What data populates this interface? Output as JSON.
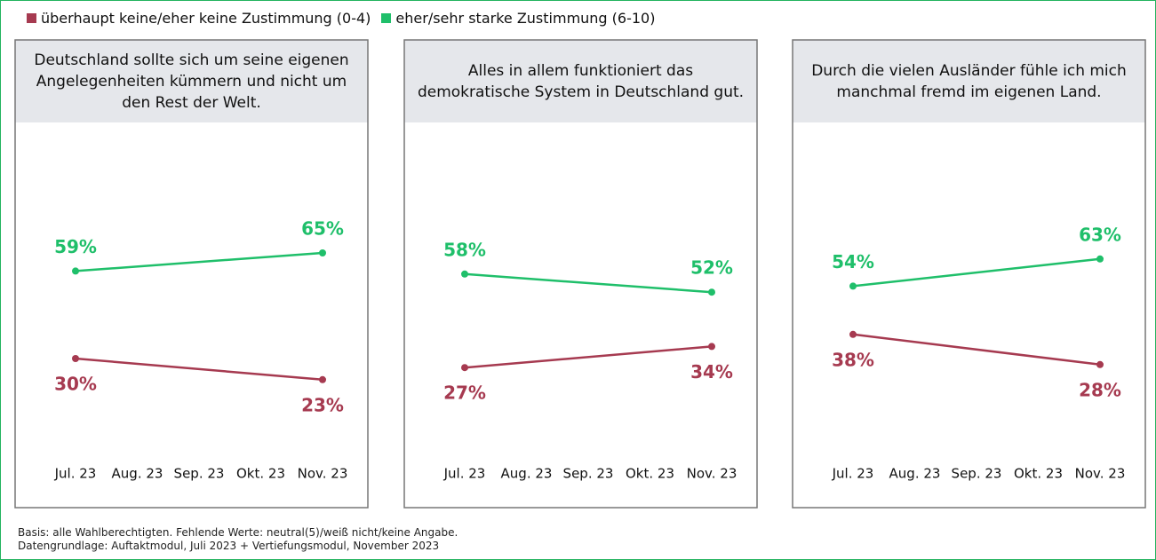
{
  "chart_data": [
    {
      "type": "line",
      "title": "Deutschland sollte sich um seine eigenen Angelegenheiten kümmern und nicht um den Rest der Welt.",
      "categories": [
        "Jul. 23",
        "Aug. 23",
        "Sep. 23",
        "Okt. 23",
        "Nov. 23"
      ],
      "ylim": [
        0,
        100
      ],
      "series": [
        {
          "name": "überhaupt keine/eher keine Zustimmung (0-4)",
          "color": "#a63a50",
          "values": [
            30,
            null,
            null,
            null,
            23
          ],
          "value_labels": [
            "30%",
            null,
            null,
            null,
            "23%"
          ]
        },
        {
          "name": "eher/sehr starke Zustimmung (6-10)",
          "color": "#1fbf6a",
          "values": [
            59,
            null,
            null,
            null,
            65
          ],
          "value_labels": [
            "59%",
            null,
            null,
            null,
            "65%"
          ]
        }
      ]
    },
    {
      "type": "line",
      "title": "Alles in allem funktioniert das demokratische System in Deutschland gut.",
      "categories": [
        "Jul. 23",
        "Aug. 23",
        "Sep. 23",
        "Okt. 23",
        "Nov. 23"
      ],
      "ylim": [
        0,
        100
      ],
      "series": [
        {
          "color": "#a63a50",
          "values": [
            27,
            null,
            null,
            null,
            34
          ],
          "value_labels": [
            "27%",
            null,
            null,
            null,
            "34%"
          ]
        },
        {
          "color": "#1fbf6a",
          "values": [
            58,
            null,
            null,
            null,
            52
          ],
          "value_labels": [
            "58%",
            null,
            null,
            null,
            "52%"
          ]
        }
      ]
    },
    {
      "type": "line",
      "title": "Durch die vielen Ausländer fühle ich mich manchmal fremd im eigenen Land.",
      "categories": [
        "Jul. 23",
        "Aug. 23",
        "Sep. 23",
        "Okt. 23",
        "Nov. 23"
      ],
      "ylim": [
        0,
        100
      ],
      "series": [
        {
          "color": "#a63a50",
          "values": [
            38,
            null,
            null,
            null,
            28
          ],
          "value_labels": [
            "38%",
            null,
            null,
            null,
            "28%"
          ]
        },
        {
          "color": "#1fbf6a",
          "values": [
            54,
            null,
            null,
            null,
            63
          ],
          "value_labels": [
            "54%",
            null,
            null,
            null,
            "63%"
          ]
        }
      ]
    }
  ],
  "footnotes": [
    "Basis: alle Wahlberechtigten. Fehlende Werte: neutral(5)/weiß nicht/keine Angabe.",
    "Datengrundlage: Auftaktmodul, Juli 2023 + Vertiefungsmodul, November 2023"
  ]
}
